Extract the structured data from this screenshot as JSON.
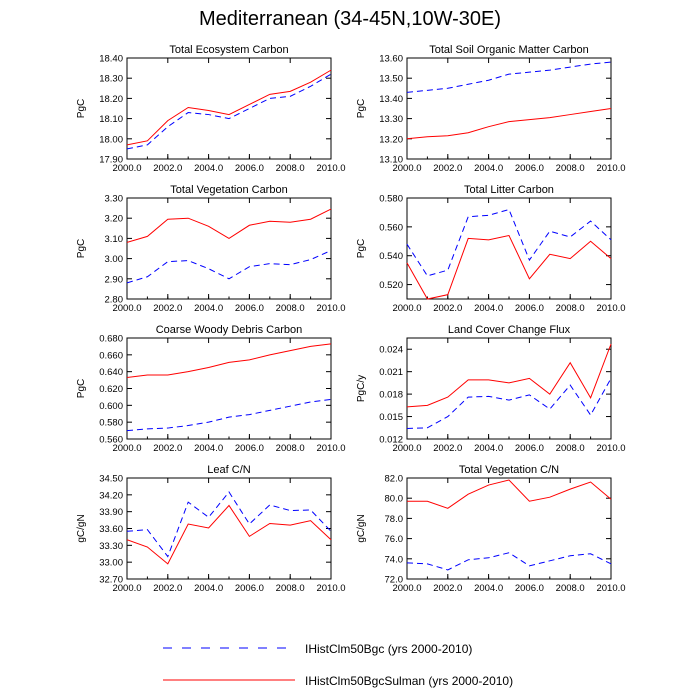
{
  "title": "Mediterranean (34-45N,10W-30E)",
  "legend": [
    {
      "label": "IHistClm50Bgc (yrs 2000-2010)",
      "color": "#0000ff",
      "dash": true
    },
    {
      "label": "IHistClm50BgcSulman (yrs 2000-2010)",
      "color": "#ff0000",
      "dash": false
    }
  ],
  "chart_data": [
    {
      "type": "line",
      "title": "Total Ecosystem Carbon",
      "ylabel": "PgC",
      "xlim": [
        2000,
        2010
      ],
      "ylim": [
        17.9,
        18.4
      ],
      "xticks": [
        "2000.0",
        "2002.0",
        "2004.0",
        "2006.0",
        "2008.0",
        "2010.0"
      ],
      "yticks": [
        "17.90",
        "18.00",
        "18.10",
        "18.20",
        "18.30",
        "18.40"
      ],
      "x": [
        2000,
        2001,
        2002,
        2003,
        2004,
        2005,
        2006,
        2007,
        2008,
        2009,
        2010
      ],
      "series": [
        {
          "name": "IHistClm50Bgc",
          "values": [
            17.95,
            17.97,
            18.06,
            18.13,
            18.12,
            18.1,
            18.15,
            18.2,
            18.21,
            18.26,
            18.32
          ]
        },
        {
          "name": "IHistClm50BgcSulman",
          "values": [
            17.97,
            17.99,
            18.09,
            18.155,
            18.14,
            18.12,
            18.17,
            18.22,
            18.235,
            18.28,
            18.34
          ]
        }
      ]
    },
    {
      "type": "line",
      "title": "Total Soil Organic Matter Carbon",
      "ylabel": "PgC",
      "xlim": [
        2000,
        2010
      ],
      "ylim": [
        13.1,
        13.6
      ],
      "xticks": [
        "2000.0",
        "2002.0",
        "2004.0",
        "2006.0",
        "2008.0",
        "2010.0"
      ],
      "yticks": [
        "13.10",
        "13.20",
        "13.30",
        "13.40",
        "13.50",
        "13.60"
      ],
      "x": [
        2000,
        2001,
        2002,
        2003,
        2004,
        2005,
        2006,
        2007,
        2008,
        2009,
        2010
      ],
      "series": [
        {
          "name": "IHistClm50Bgc",
          "values": [
            13.43,
            13.44,
            13.45,
            13.47,
            13.49,
            13.52,
            13.53,
            13.54,
            13.555,
            13.57,
            13.58
          ]
        },
        {
          "name": "IHistClm50BgcSulman",
          "values": [
            13.2,
            13.21,
            13.215,
            13.23,
            13.26,
            13.285,
            13.295,
            13.305,
            13.32,
            13.335,
            13.35
          ]
        }
      ]
    },
    {
      "type": "line",
      "title": "Total Vegetation Carbon",
      "ylabel": "PgC",
      "xlim": [
        2000,
        2010
      ],
      "ylim": [
        2.8,
        3.3
      ],
      "xticks": [
        "2000.0",
        "2002.0",
        "2004.0",
        "2006.0",
        "2008.0",
        "2010.0"
      ],
      "yticks": [
        "2.80",
        "2.90",
        "3.00",
        "3.10",
        "3.20",
        "3.30"
      ],
      "x": [
        2000,
        2001,
        2002,
        2003,
        2004,
        2005,
        2006,
        2007,
        2008,
        2009,
        2010
      ],
      "series": [
        {
          "name": "IHistClm50Bgc",
          "values": [
            2.88,
            2.91,
            2.985,
            2.99,
            2.95,
            2.9,
            2.96,
            2.975,
            2.97,
            2.995,
            3.04
          ]
        },
        {
          "name": "IHistClm50BgcSulman",
          "values": [
            3.08,
            3.11,
            3.195,
            3.2,
            3.16,
            3.1,
            3.165,
            3.185,
            3.18,
            3.195,
            3.245
          ]
        }
      ]
    },
    {
      "type": "line",
      "title": "Total Litter Carbon",
      "ylabel": "PgC",
      "xlim": [
        2000,
        2010
      ],
      "ylim": [
        0.51,
        0.58
      ],
      "xticks": [
        "2000.0",
        "2002.0",
        "2004.0",
        "2006.0",
        "2008.0",
        "2010.0"
      ],
      "yticks": [
        "0.520",
        "0.540",
        "0.560",
        "0.580"
      ],
      "x": [
        2000,
        2001,
        2002,
        2003,
        2004,
        2005,
        2006,
        2007,
        2008,
        2009,
        2010
      ],
      "series": [
        {
          "name": "IHistClm50Bgc",
          "values": [
            0.548,
            0.526,
            0.53,
            0.567,
            0.568,
            0.572,
            0.537,
            0.557,
            0.553,
            0.564,
            0.551
          ]
        },
        {
          "name": "IHistClm50BgcSulman",
          "values": [
            0.535,
            0.51,
            0.513,
            0.552,
            0.551,
            0.554,
            0.524,
            0.541,
            0.538,
            0.55,
            0.538
          ]
        }
      ]
    },
    {
      "type": "line",
      "title": "Coarse Woody Debris Carbon",
      "ylabel": "PgC",
      "xlim": [
        2000,
        2010
      ],
      "ylim": [
        0.56,
        0.68
      ],
      "xticks": [
        "2000.0",
        "2002.0",
        "2004.0",
        "2006.0",
        "2008.0",
        "2010.0"
      ],
      "yticks": [
        "0.560",
        "0.580",
        "0.600",
        "0.620",
        "0.640",
        "0.660",
        "0.680"
      ],
      "x": [
        2000,
        2001,
        2002,
        2003,
        2004,
        2005,
        2006,
        2007,
        2008,
        2009,
        2010
      ],
      "series": [
        {
          "name": "IHistClm50Bgc",
          "values": [
            0.57,
            0.572,
            0.573,
            0.576,
            0.58,
            0.586,
            0.589,
            0.594,
            0.599,
            0.604,
            0.607
          ]
        },
        {
          "name": "IHistClm50BgcSulman",
          "values": [
            0.633,
            0.636,
            0.636,
            0.64,
            0.645,
            0.651,
            0.654,
            0.66,
            0.665,
            0.67,
            0.673
          ]
        }
      ]
    },
    {
      "type": "line",
      "title": "Land Cover Change Flux",
      "ylabel": "PgC/y",
      "xlim": [
        2000,
        2010
      ],
      "ylim": [
        0.012,
        0.0255
      ],
      "xticks": [
        "2000.0",
        "2002.0",
        "2004.0",
        "2006.0",
        "2008.0",
        "2010.0"
      ],
      "yticks": [
        "0.012",
        "0.015",
        "0.018",
        "0.021",
        "0.024"
      ],
      "x": [
        2000,
        2001,
        2002,
        2003,
        2004,
        2005,
        2006,
        2007,
        2008,
        2009,
        2010
      ],
      "series": [
        {
          "name": "IHistClm50Bgc",
          "values": [
            0.0134,
            0.0135,
            0.015,
            0.0176,
            0.0177,
            0.0172,
            0.0179,
            0.016,
            0.0192,
            0.0152,
            0.0201
          ]
        },
        {
          "name": "IHistClm50BgcSulman",
          "values": [
            0.0163,
            0.0165,
            0.0176,
            0.0199,
            0.0199,
            0.0195,
            0.0201,
            0.018,
            0.0222,
            0.0175,
            0.0247
          ]
        }
      ]
    },
    {
      "type": "line",
      "title": "Leaf C/N",
      "ylabel": "gC/gN",
      "xlim": [
        2000,
        2010
      ],
      "ylim": [
        32.7,
        34.5
      ],
      "xticks": [
        "2000.0",
        "2002.0",
        "2004.0",
        "2006.0",
        "2008.0",
        "2010.0"
      ],
      "yticks": [
        "32.70",
        "33.00",
        "33.30",
        "33.60",
        "33.90",
        "34.20",
        "34.50"
      ],
      "x": [
        2000,
        2001,
        2002,
        2003,
        2004,
        2005,
        2006,
        2007,
        2008,
        2009,
        2010
      ],
      "series": [
        {
          "name": "IHistClm50Bgc",
          "values": [
            33.55,
            33.58,
            33.1,
            34.07,
            33.8,
            34.25,
            33.68,
            34.02,
            33.92,
            33.93,
            33.55
          ]
        },
        {
          "name": "IHistClm50BgcSulman",
          "values": [
            33.4,
            33.27,
            32.97,
            33.68,
            33.61,
            34.01,
            33.46,
            33.69,
            33.66,
            33.74,
            33.4
          ]
        }
      ]
    },
    {
      "type": "line",
      "title": "Total Vegetation C/N",
      "ylabel": "gC/gN",
      "xlim": [
        2000,
        2010
      ],
      "ylim": [
        72,
        82
      ],
      "xticks": [
        "2000.0",
        "2002.0",
        "2004.0",
        "2006.0",
        "2008.0",
        "2010.0"
      ],
      "yticks": [
        "72.0",
        "74.0",
        "76.0",
        "78.0",
        "80.0",
        "82.0"
      ],
      "x": [
        2000,
        2001,
        2002,
        2003,
        2004,
        2005,
        2006,
        2007,
        2008,
        2009,
        2010
      ],
      "series": [
        {
          "name": "IHistClm50Bgc",
          "values": [
            73.6,
            73.5,
            72.9,
            73.9,
            74.1,
            74.6,
            73.3,
            73.8,
            74.3,
            74.5,
            73.5
          ]
        },
        {
          "name": "IHistClm50BgcSulman",
          "values": [
            79.7,
            79.7,
            79.0,
            80.4,
            81.3,
            81.8,
            79.7,
            80.1,
            80.9,
            81.6,
            79.9
          ]
        }
      ]
    }
  ]
}
